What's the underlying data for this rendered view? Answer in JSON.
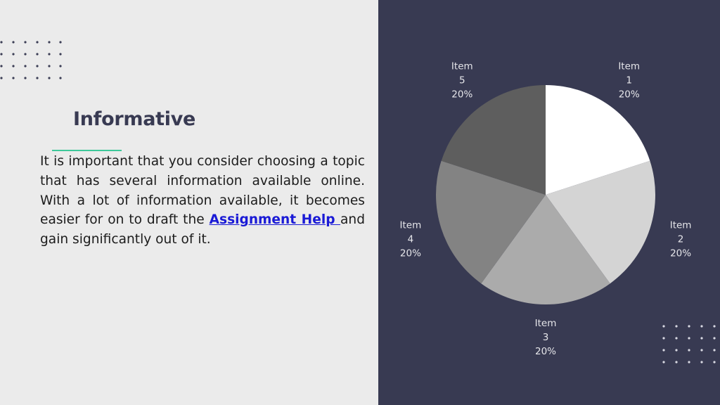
{
  "content": {
    "title": "Informative",
    "paragraph_before_link": "It is important that you consider choosing a topic that has several information available online. With a lot of information available, it becomes easier for on to draft the ",
    "link_text": "Assignment Help ",
    "paragraph_after_link": "and gain significantly out of it."
  },
  "colors": {
    "left_background": "#ebebeb",
    "right_background": "#383a52",
    "title": "#383a52",
    "accent_rule": "#3ec89a",
    "link": "#1a1ad6"
  },
  "chart_data": {
    "type": "pie",
    "title": "",
    "categories": [
      "Item 1",
      "Item 2",
      "Item 3",
      "Item 4",
      "Item 5"
    ],
    "values": [
      20,
      20,
      20,
      20,
      20
    ],
    "label_lines": [
      [
        "Item",
        "1",
        "20%"
      ],
      [
        "Item",
        "2",
        "20%"
      ],
      [
        "Item",
        "3",
        "20%"
      ],
      [
        "Item",
        "4",
        "20%"
      ],
      [
        "Item",
        "5",
        "20%"
      ]
    ],
    "slice_colors": [
      "#ffffff",
      "#d4d4d4",
      "#ababab",
      "#838383",
      "#5e5e5e"
    ],
    "start": "12 o'clock",
    "direction": "clockwise",
    "legend": "none"
  }
}
